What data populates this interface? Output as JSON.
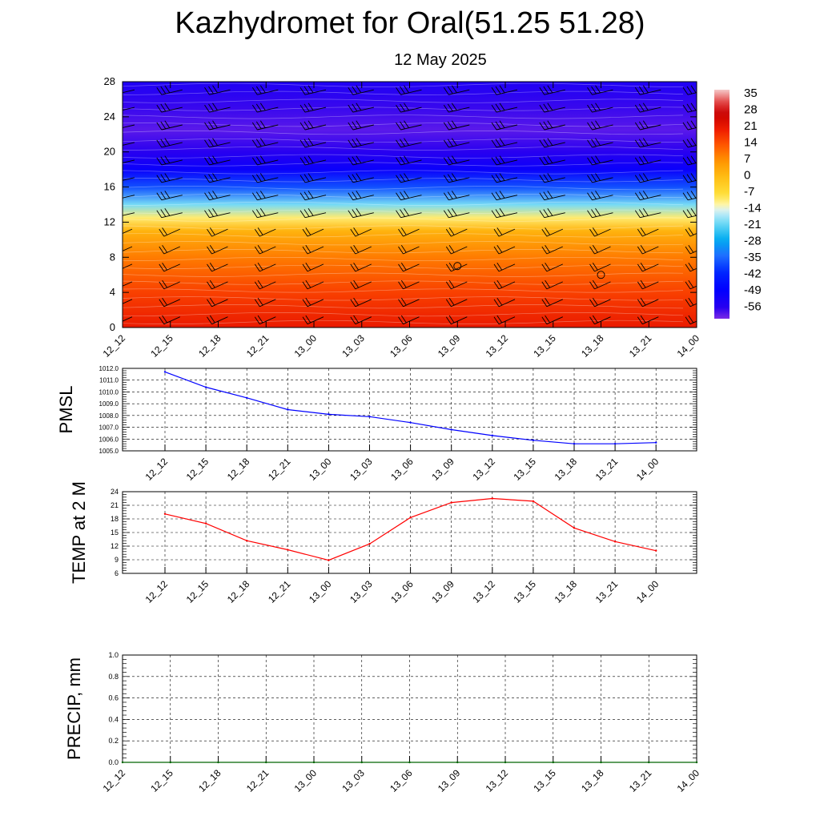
{
  "title": "Kazhydromet for Oral(51.25 51.28)",
  "subtitle": "12 May 2025",
  "charts": {
    "cross_section": {
      "type": "heatmap",
      "y_ticks": [
        "0",
        "4",
        "8",
        "12",
        "16",
        "20",
        "24",
        "28"
      ],
      "ylim": [
        0,
        28
      ],
      "x_ticks": [
        "12_12",
        "12_15",
        "12_18",
        "12_21",
        "13_00",
        "13_03",
        "13_06",
        "13_09",
        "13_12",
        "13_15",
        "13_18",
        "13_21",
        "14_00"
      ],
      "colorbar_labels": [
        "35",
        "28",
        "21",
        "14",
        "7",
        "0",
        "-7",
        "-14",
        "-21",
        "-28",
        "-35",
        "-42",
        "-49",
        "-56"
      ],
      "colorbar_range": [
        -63,
        39
      ],
      "temperature_profile": [
        {
          "z": 0,
          "t": 22
        },
        {
          "z": 4,
          "t": 17
        },
        {
          "z": 8,
          "t": 10
        },
        {
          "z": 11,
          "t": 2
        },
        {
          "z": 12.5,
          "t": -10
        },
        {
          "z": 14,
          "t": -20
        },
        {
          "z": 16,
          "t": -38
        },
        {
          "z": 18,
          "t": -52
        },
        {
          "z": 20,
          "t": -58
        },
        {
          "z": 22.5,
          "t": -61
        },
        {
          "z": 25,
          "t": -59
        },
        {
          "z": 28,
          "t": -56
        }
      ],
      "calm_markers": [
        {
          "x": "13_09",
          "z": 7
        },
        {
          "x": "13_18",
          "z": 6
        }
      ],
      "wind_barbs": "present"
    },
    "pmsl": {
      "type": "line",
      "ylabel": "PMSL",
      "ylim": [
        1005.0,
        1012.0
      ],
      "y_ticks": [
        "1012.0",
        "1011.0",
        "1010.0",
        "1009.0",
        "1008.0",
        "1007.0",
        "1006.0",
        "1005.0"
      ],
      "categories": [
        "12_12",
        "12_15",
        "12_18",
        "12_21",
        "13_00",
        "13_03",
        "13_06",
        "13_09",
        "13_12",
        "13_15",
        "13_18",
        "13_21",
        "14_00"
      ],
      "values": [
        1011.7,
        1010.4,
        1009.5,
        1008.5,
        1008.1,
        1007.9,
        1007.4,
        1006.8,
        1006.3,
        1005.9,
        1005.6,
        1005.6,
        1005.7
      ],
      "color": "#0000ff",
      "grid": true
    },
    "temp": {
      "type": "line",
      "ylabel": "TEMP at 2 M",
      "ylim": [
        6,
        24
      ],
      "y_ticks": [
        "24",
        "21",
        "18",
        "15",
        "12",
        "9",
        "6"
      ],
      "categories": [
        "12_12",
        "12_15",
        "12_18",
        "12_21",
        "13_00",
        "13_03",
        "13_06",
        "13_09",
        "13_12",
        "13_15",
        "13_18",
        "13_21",
        "14_00"
      ],
      "values": [
        19.1,
        17.0,
        13.2,
        11.2,
        8.9,
        12.5,
        18.3,
        21.6,
        22.5,
        21.9,
        16.0,
        13.0,
        11.0
      ],
      "color": "#ff0000",
      "grid": true
    },
    "precip": {
      "type": "line",
      "ylabel": "PRECIP, mm",
      "ylim": [
        0,
        1.0
      ],
      "y_ticks": [
        "1.0",
        "0.8",
        "0.6",
        "0.4",
        "0.2",
        "0.0"
      ],
      "x_ticks": [
        "12_12",
        "12_15",
        "12_18",
        "12_21",
        "13_00",
        "13_03",
        "13_06",
        "13_09",
        "13_12",
        "13_15",
        "13_18",
        "13_21",
        "14_00"
      ],
      "values": [
        0,
        0,
        0,
        0,
        0,
        0,
        0,
        0,
        0,
        0,
        0,
        0,
        0
      ],
      "color": "#006400",
      "grid": true
    }
  }
}
